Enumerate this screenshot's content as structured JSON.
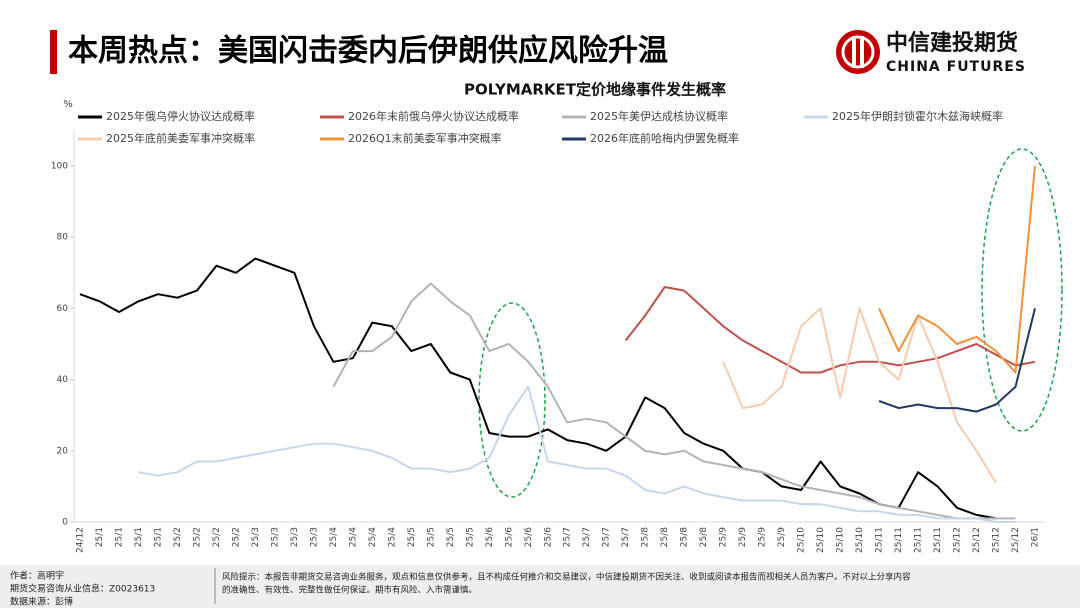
{
  "header": {
    "title": "本周热点：美国闪击委内后伊朗供应风险升温",
    "logo_cn": "中信建投期货",
    "logo_en": "CHINA FUTURES"
  },
  "chart_data": {
    "type": "line",
    "title": "POLYMARKET定价地缘事件发生概率",
    "y_label": "%",
    "categories": [
      "24/12",
      "25/1",
      "25/1",
      "25/1",
      "25/1",
      "25/2",
      "25/2",
      "25/2",
      "25/2",
      "25/3",
      "25/3",
      "25/3",
      "25/3",
      "25/4",
      "25/4",
      "25/4",
      "25/4",
      "25/5",
      "25/5",
      "25/5",
      "25/5",
      "25/6",
      "25/6",
      "25/6",
      "25/6",
      "25/7",
      "25/7",
      "25/7",
      "25/7",
      "25/8",
      "25/8",
      "25/8",
      "25/8",
      "25/9",
      "25/9",
      "25/9",
      "25/9",
      "25/10",
      "25/10",
      "25/10",
      "25/10",
      "25/11",
      "25/11",
      "25/11",
      "25/11",
      "25/12",
      "25/12",
      "25/12",
      "25/12",
      "26/1"
    ],
    "ylim": [
      0,
      110
    ],
    "yticks": [
      0,
      20,
      40,
      60,
      80,
      100
    ],
    "series": [
      {
        "name": "2025年俄乌停火协议达成概率",
        "color": "#000000",
        "values": [
          64,
          62,
          59,
          62,
          64,
          63,
          65,
          72,
          70,
          74,
          72,
          70,
          55,
          45,
          46,
          56,
          55,
          48,
          50,
          42,
          40,
          25,
          24,
          24,
          26,
          23,
          22,
          20,
          24,
          35,
          32,
          25,
          22,
          20,
          15,
          14,
          10,
          9,
          17,
          10,
          8,
          5,
          4,
          14,
          10,
          4,
          2,
          1,
          null,
          null
        ]
      },
      {
        "name": "2026年末前俄乌停火协议达成概率",
        "color": "#c0504d",
        "values": [
          null,
          null,
          null,
          null,
          null,
          null,
          null,
          null,
          null,
          null,
          null,
          null,
          null,
          null,
          null,
          null,
          null,
          null,
          null,
          null,
          null,
          null,
          null,
          null,
          null,
          null,
          null,
          null,
          51,
          58,
          66,
          65,
          60,
          55,
          51,
          48,
          45,
          42,
          42,
          44,
          45,
          45,
          44,
          45,
          46,
          48,
          50,
          47,
          44,
          45
        ]
      },
      {
        "name": "2025年美伊达成核协议概率",
        "color": "#b3b3b3",
        "values": [
          null,
          null,
          null,
          null,
          null,
          null,
          null,
          null,
          null,
          null,
          null,
          null,
          null,
          38,
          48,
          48,
          52,
          62,
          67,
          62,
          58,
          48,
          50,
          45,
          38,
          28,
          29,
          28,
          24,
          20,
          19,
          20,
          17,
          16,
          15,
          14,
          12,
          10,
          9,
          8,
          7,
          5,
          4,
          3,
          2,
          1,
          1,
          1,
          1,
          null
        ]
      },
      {
        "name": "2025年伊朗封锁霍尔木兹海峡概率",
        "color": "#c5d6ee",
        "values": [
          null,
          null,
          null,
          14,
          13,
          14,
          17,
          17,
          18,
          19,
          20,
          21,
          22,
          22,
          21,
          20,
          18,
          15,
          15,
          14,
          15,
          18,
          30,
          38,
          17,
          16,
          15,
          15,
          13,
          9,
          8,
          10,
          8,
          7,
          6,
          6,
          6,
          5,
          5,
          4,
          3,
          3,
          2,
          2,
          1,
          1,
          1,
          0,
          0,
          null
        ]
      },
      {
        "name": "2025年底前美委军事冲突概率",
        "color": "#f8cbad",
        "values": [
          null,
          null,
          null,
          null,
          null,
          null,
          null,
          null,
          null,
          null,
          null,
          null,
          null,
          null,
          null,
          null,
          null,
          null,
          null,
          null,
          null,
          null,
          null,
          null,
          null,
          null,
          null,
          null,
          null,
          null,
          null,
          null,
          null,
          45,
          32,
          33,
          38,
          55,
          60,
          35,
          60,
          45,
          40,
          58,
          45,
          28,
          20,
          11,
          null,
          null
        ]
      },
      {
        "name": "2026Q1末前美委军事冲突概率",
        "color": "#f0923a",
        "values": [
          null,
          null,
          null,
          null,
          null,
          null,
          null,
          null,
          null,
          null,
          null,
          null,
          null,
          null,
          null,
          null,
          null,
          null,
          null,
          null,
          null,
          null,
          null,
          null,
          null,
          null,
          null,
          null,
          null,
          null,
          null,
          null,
          null,
          null,
          null,
          null,
          null,
          null,
          null,
          null,
          null,
          60,
          48,
          58,
          55,
          50,
          52,
          48,
          42,
          100
        ]
      },
      {
        "name": "2026年底前哈梅内伊罢免概率",
        "color": "#203864",
        "values": [
          null,
          null,
          null,
          null,
          null,
          null,
          null,
          null,
          null,
          null,
          null,
          null,
          null,
          null,
          null,
          null,
          null,
          null,
          null,
          null,
          null,
          null,
          null,
          null,
          null,
          null,
          null,
          null,
          null,
          null,
          null,
          null,
          null,
          null,
          null,
          null,
          null,
          null,
          null,
          null,
          null,
          34,
          32,
          33,
          32,
          32,
          31,
          33,
          38,
          60
        ]
      }
    ]
  },
  "footer": {
    "author": "作者：高明宇",
    "license": "期货交易咨询从业信息：Z0023613",
    "source": "数据来源：彭博",
    "risk": [
      "风险提示：本报告非期货交易咨询业务服务，观点和信息仅供参考，且不构成任何推介和交易建议，中信建投期货不因关注、收到或阅读本报告而视相关人员为客户。不对以上分享内容",
      "的准确性、有效性、完整性做任何保证。期市有风险、入市需谨慎。"
    ]
  }
}
